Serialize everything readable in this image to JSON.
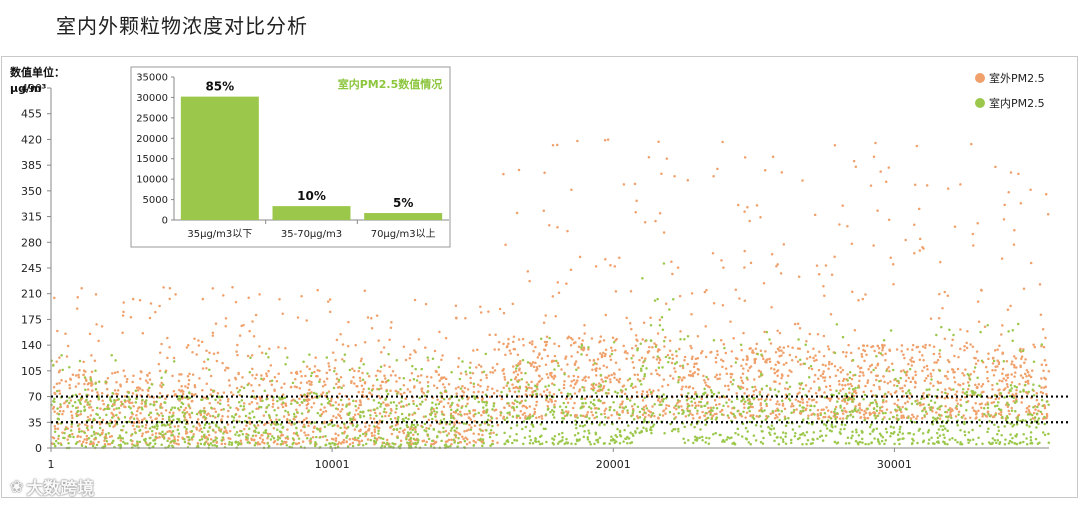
{
  "page": {
    "title": "室内外颗粒物浓度对比分析",
    "watermark": "大数跨境",
    "watermark_icon": "logo-icon"
  },
  "main_chart": {
    "unit_label_line1": "数值单位：",
    "unit_label_line2": "μg/m³"
  },
  "inset": {
    "title": "室内PM2.5数值情况"
  },
  "colors": {
    "outdoor": "#f0a06a",
    "indoor": "#9bc84b",
    "bar": "#9bc84b",
    "inset_title": "#8dc63f",
    "reference_line": "#000000"
  },
  "chart_data": [
    {
      "type": "scatter",
      "title": "",
      "xlabel": "",
      "ylabel": "数值单位：μg/m³",
      "xlim": [
        1,
        35500
      ],
      "ylim": [
        0,
        490
      ],
      "x_ticks": [
        "1",
        "10001",
        "20001",
        "30001"
      ],
      "x_tick_values": [
        1,
        10001,
        20001,
        30001
      ],
      "y_ticks": [
        "0",
        "35",
        "70",
        "105",
        "140",
        "175",
        "210",
        "245",
        "280",
        "315",
        "350",
        "385",
        "420",
        "455",
        "490"
      ],
      "y_tick_values": [
        0,
        35,
        70,
        105,
        140,
        175,
        210,
        245,
        280,
        315,
        350,
        385,
        420,
        455,
        490
      ],
      "reference_lines": [
        35,
        70
      ],
      "legend_position": "top-right",
      "series": [
        {
          "name": "室外PM2.5",
          "color": "#f0a06a",
          "segments": [
            {
              "x_range": [
                1,
                15900
              ],
              "typical_range": [
                5,
                105
              ],
              "max": 220
            },
            {
              "x_range": [
                15900,
                20800
              ],
              "typical_range": [
                40,
                150
              ],
              "max": 420
            },
            {
              "x_range": [
                20800,
                21900
              ],
              "typical_range": [
                40,
                160
              ],
              "max": 430
            },
            {
              "x_range": [
                21900,
                35500
              ],
              "typical_range": [
                40,
                140
              ],
              "max": 420
            }
          ]
        },
        {
          "name": "室内PM2.5",
          "color": "#9bc84b",
          "segments": [
            {
              "x_range": [
                1,
                15900
              ],
              "typical_range": [
                0,
                70
              ],
              "max": 130
            },
            {
              "x_range": [
                15900,
                20800
              ],
              "typical_range": [
                5,
                80
              ],
              "max": 150
            },
            {
              "x_range": [
                20800,
                22300
              ],
              "typical_range": [
                20,
                150
              ],
              "max": 260
            },
            {
              "x_range": [
                22300,
                35500
              ],
              "typical_range": [
                5,
                80
              ],
              "max": 170
            }
          ]
        }
      ]
    },
    {
      "type": "bar",
      "title": "室内PM2.5数值情况",
      "categories": [
        "35μg/m3以下",
        "35-70μg/m3",
        "70μg/m3以上"
      ],
      "values": [
        30200,
        3400,
        1700
      ],
      "data_labels": [
        "85%",
        "10%",
        "5%"
      ],
      "ylim": [
        0,
        35000
      ],
      "y_ticks": [
        "0",
        "5000",
        "10000",
        "15000",
        "20000",
        "25000",
        "30000",
        "35000"
      ],
      "y_tick_values": [
        0,
        5000,
        10000,
        15000,
        20000,
        25000,
        30000,
        35000
      ],
      "xlabel": "",
      "ylabel": ""
    }
  ]
}
